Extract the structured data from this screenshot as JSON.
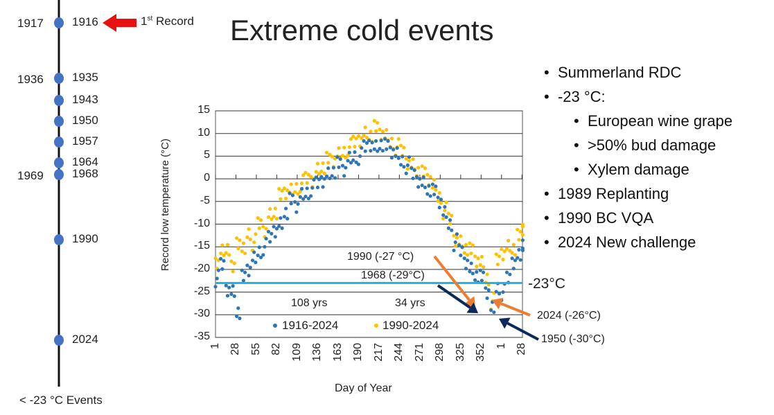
{
  "title": "Extreme cold events",
  "timeline": {
    "footer": "< -23 °C Events",
    "right_years": [
      "1916",
      "1935",
      "1943",
      "1950",
      "1957",
      "1964",
      "1968",
      "1990",
      "2024"
    ],
    "left_years": [
      "1917",
      "1936",
      "1969"
    ],
    "first_record": {
      "label": "1",
      "sup": "st",
      "rest": " Record"
    }
  },
  "bullets": [
    {
      "text": "Summerland RDC",
      "level": 1
    },
    {
      "text": "-23 °C:",
      "level": 1
    },
    {
      "text": "European wine grape",
      "level": 2
    },
    {
      "text": ">50% bud damage",
      "level": 2
    },
    {
      "text": "Xylem damage",
      "level": 2
    },
    {
      "text": "1989 Replanting",
      "level": 1
    },
    {
      "text": "1990 BC VQA",
      "level": 1
    },
    {
      "text": "2024 New challenge",
      "level": 1
    }
  ],
  "colors": {
    "blue": "#2e75b6",
    "yellow": "#ffc000",
    "threshold": "#1fb4e4",
    "orange": "#ed7d31",
    "navy": "#0b2a5b",
    "red": "#e81010"
  },
  "chart_data": {
    "type": "scatter",
    "xlabel": "Day of Year",
    "ylabel": "Record low temperature (°C)",
    "ylim": [
      -35,
      15
    ],
    "yticks": [
      "15",
      "10",
      "5",
      "0",
      "-5",
      "-10",
      "-15",
      "-20",
      "-25",
      "-30",
      "-35"
    ],
    "xticks": [
      "1",
      "28",
      "55",
      "82",
      "109",
      "136",
      "163",
      "190",
      "217",
      "244",
      "271",
      "298",
      "325",
      "352",
      "1",
      "28"
    ],
    "threshold": {
      "value": -23,
      "label": "-23°C"
    },
    "annotations": {
      "a1990": "1990 (-27 °C)",
      "a1968": "1968 (-29°C)",
      "a2024": "2024 (-26°C)",
      "a1950": "1950 (-30°C)",
      "yrs108": "108 yrs",
      "yrs34": "34 yrs"
    },
    "series": [
      {
        "name": "1916-2024",
        "x": [
          1,
          8,
          15,
          22,
          29,
          36,
          43,
          50,
          57,
          64,
          71,
          78,
          85,
          92,
          99,
          106,
          113,
          120,
          127,
          134,
          141,
          148,
          155,
          162,
          169,
          176,
          183,
          190,
          197,
          204,
          211,
          218,
          225,
          232,
          239,
          246,
          253,
          260,
          267,
          274,
          281,
          288,
          295,
          302,
          309,
          316,
          323,
          330,
          337,
          344,
          351,
          358,
          365,
          372,
          379,
          386,
          393,
          400,
          407
        ],
        "y": [
          -22,
          -19,
          -24,
          -25,
          -29,
          -22,
          -20,
          -18,
          -16,
          -15,
          -13,
          -11,
          -10,
          -7,
          -5,
          -6,
          -4,
          -3,
          -2,
          -1,
          0,
          1,
          2,
          3,
          2,
          4,
          5,
          5,
          7,
          8,
          7,
          8,
          7,
          6,
          5,
          4,
          3,
          1,
          0,
          -1,
          -2,
          -3,
          -5,
          -8,
          -10,
          -14,
          -16,
          -18,
          -20,
          -21,
          -22,
          -25,
          -29,
          -24,
          -25,
          -22,
          -18,
          -17,
          -14
        ]
      },
      {
        "name": "1990-2024",
        "x": [
          1,
          8,
          15,
          22,
          29,
          36,
          43,
          50,
          57,
          64,
          71,
          78,
          85,
          92,
          99,
          106,
          113,
          120,
          127,
          134,
          141,
          148,
          155,
          162,
          169,
          176,
          183,
          190,
          197,
          204,
          211,
          218,
          225,
          232,
          239,
          246,
          253,
          260,
          267,
          274,
          281,
          288,
          295,
          302,
          309,
          316,
          323,
          330,
          337,
          344,
          351,
          358,
          365,
          372,
          379,
          386,
          393,
          400,
          407
        ],
        "y": [
          -18,
          -16,
          -15,
          -20,
          -14,
          -16,
          -12,
          -14,
          -10,
          -11,
          -8,
          -7,
          -4,
          -3,
          -3,
          -2,
          -1,
          0,
          0,
          2,
          3,
          4,
          4,
          5,
          6,
          7,
          8,
          9,
          10,
          10,
          11,
          10,
          9,
          8,
          7,
          6,
          4,
          3,
          2,
          1,
          0,
          -2,
          -4,
          -7,
          -9,
          -13,
          -14,
          -15,
          -16,
          -18,
          -19,
          -22,
          -27,
          -18,
          -16,
          -15,
          -15,
          -13,
          -11
        ]
      }
    ]
  }
}
